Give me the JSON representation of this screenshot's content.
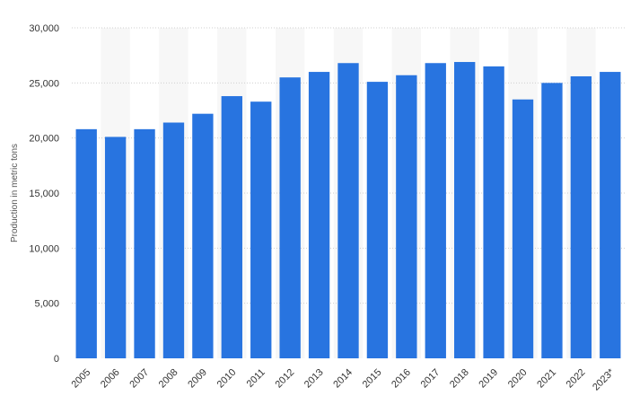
{
  "chart_data": {
    "type": "bar",
    "title": "",
    "xlabel": "",
    "ylabel": "Production in metric tons",
    "categories": [
      "2005",
      "2006",
      "2007",
      "2008",
      "2009",
      "2010",
      "2011",
      "2012",
      "2013",
      "2014",
      "2015",
      "2016",
      "2017",
      "2018",
      "2019",
      "2020",
      "2021",
      "2022",
      "2023*"
    ],
    "values": [
      20800,
      20100,
      20800,
      21400,
      22200,
      23800,
      23300,
      25500,
      26000,
      26800,
      25100,
      25700,
      26800,
      26900,
      26500,
      23500,
      25000,
      25600,
      26000
    ],
    "ylim": [
      0,
      30000
    ],
    "yticks": [
      0,
      5000,
      10000,
      15000,
      20000,
      25000,
      30000
    ],
    "ytick_labels": [
      "0",
      "5,000",
      "10,000",
      "15,000",
      "20,000",
      "25,000",
      "30,000"
    ],
    "grid": true,
    "legend": "none",
    "bar_color": "#2874e0",
    "band_color": "#f7f7f7"
  }
}
